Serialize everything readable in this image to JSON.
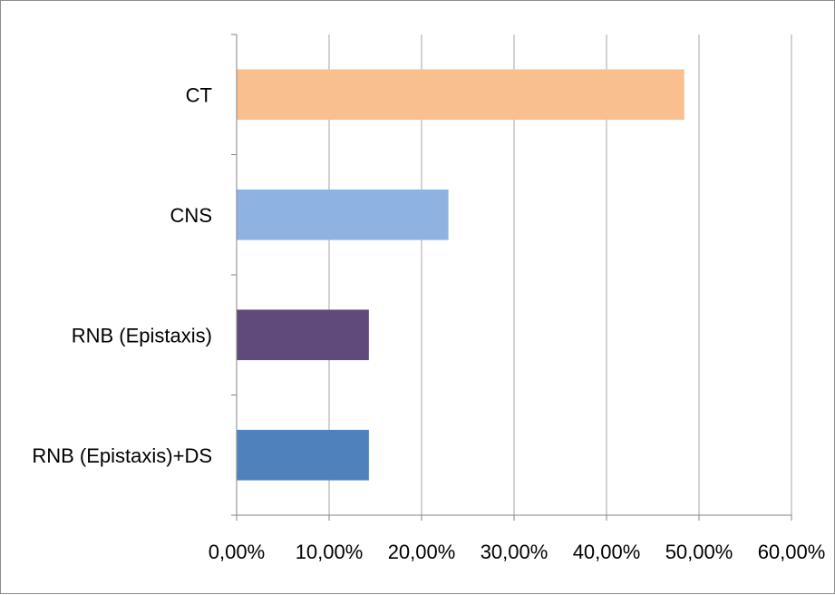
{
  "chart_data": {
    "type": "bar",
    "orientation": "horizontal",
    "title": "",
    "xlabel": "",
    "ylabel": "",
    "categories": [
      "CT",
      "CNS",
      "RNB (Epistaxis)",
      "RNB (Epistaxis)+DS"
    ],
    "values": [
      48.4,
      22.9,
      14.3,
      14.3
    ],
    "colors": [
      "#f9bf8f",
      "#8db3e2",
      "#604a7b",
      "#4f81bd"
    ],
    "xlim": [
      0,
      60
    ],
    "xticks": [
      0,
      10,
      20,
      30,
      40,
      50,
      60
    ],
    "xtick_labels": [
      "0,00%",
      "10,00%",
      "20,00%",
      "30,00%",
      "40,00%",
      "50,00%",
      "60,00%"
    ],
    "grid": true,
    "legend": "none"
  }
}
